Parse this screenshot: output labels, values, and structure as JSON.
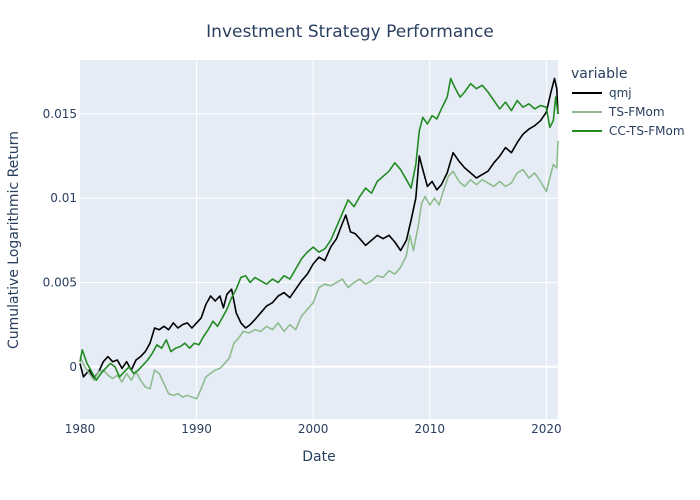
{
  "chart_data": {
    "type": "line",
    "title": "Investment Strategy Performance",
    "xlabel": "Date",
    "ylabel": "Cumulative Logarithmic Return",
    "xlim": [
      1980,
      2021
    ],
    "ylim": [
      -0.0031,
      0.0182
    ],
    "x_ticks": [
      1980,
      1990,
      2000,
      2010,
      2020
    ],
    "x_tick_labels": [
      "1980",
      "1990",
      "2000",
      "2010",
      "2020"
    ],
    "y_ticks": [
      0,
      0.005,
      0.01,
      0.015
    ],
    "y_tick_labels": [
      "0",
      "0.005",
      "0.01",
      "0.015"
    ],
    "legend_title": "variable",
    "legend_position": "right",
    "grid": true,
    "series": [
      {
        "name": "qmj",
        "color": "#000000",
        "points": [
          [
            1980.0,
            0.0002
          ],
          [
            1980.3,
            -0.0006
          ],
          [
            1980.8,
            -0.0002
          ],
          [
            1981.2,
            -0.0007
          ],
          [
            1981.6,
            -0.0003
          ],
          [
            1982.0,
            0.0003
          ],
          [
            1982.4,
            0.0006
          ],
          [
            1982.8,
            0.0003
          ],
          [
            1983.2,
            0.0004
          ],
          [
            1983.6,
            -0.0001
          ],
          [
            1984.0,
            0.0003
          ],
          [
            1984.4,
            -0.0002
          ],
          [
            1984.8,
            0.0004
          ],
          [
            1985.2,
            0.0006
          ],
          [
            1985.6,
            0.0009
          ],
          [
            1986.0,
            0.0014
          ],
          [
            1986.4,
            0.0023
          ],
          [
            1986.8,
            0.0022
          ],
          [
            1987.2,
            0.0024
          ],
          [
            1987.6,
            0.0022
          ],
          [
            1988.0,
            0.0026
          ],
          [
            1988.4,
            0.0023
          ],
          [
            1988.8,
            0.0025
          ],
          [
            1989.2,
            0.0026
          ],
          [
            1989.6,
            0.0023
          ],
          [
            1990.0,
            0.0026
          ],
          [
            1990.4,
            0.0029
          ],
          [
            1990.8,
            0.0037
          ],
          [
            1991.2,
            0.0042
          ],
          [
            1991.6,
            0.0039
          ],
          [
            1992.0,
            0.0042
          ],
          [
            1992.3,
            0.0035
          ],
          [
            1992.6,
            0.0043
          ],
          [
            1993.0,
            0.0046
          ],
          [
            1993.4,
            0.0032
          ],
          [
            1993.8,
            0.0026
          ],
          [
            1994.2,
            0.0023
          ],
          [
            1994.6,
            0.0025
          ],
          [
            1995.0,
            0.0028
          ],
          [
            1995.5,
            0.0032
          ],
          [
            1996.0,
            0.0036
          ],
          [
            1996.5,
            0.0038
          ],
          [
            1997.0,
            0.0042
          ],
          [
            1997.5,
            0.0044
          ],
          [
            1998.0,
            0.0041
          ],
          [
            1998.5,
            0.0046
          ],
          [
            1999.0,
            0.0051
          ],
          [
            1999.5,
            0.0055
          ],
          [
            2000.0,
            0.0061
          ],
          [
            2000.5,
            0.0065
          ],
          [
            2001.0,
            0.0063
          ],
          [
            2001.5,
            0.0071
          ],
          [
            2002.0,
            0.0076
          ],
          [
            2002.5,
            0.0085
          ],
          [
            2002.8,
            0.009
          ],
          [
            2003.2,
            0.008
          ],
          [
            2003.6,
            0.0079
          ],
          [
            2004.0,
            0.0076
          ],
          [
            2004.5,
            0.0072
          ],
          [
            2005.0,
            0.0075
          ],
          [
            2005.5,
            0.0078
          ],
          [
            2006.0,
            0.0076
          ],
          [
            2006.5,
            0.0078
          ],
          [
            2007.0,
            0.0074
          ],
          [
            2007.5,
            0.0069
          ],
          [
            2008.0,
            0.0075
          ],
          [
            2008.4,
            0.0087
          ],
          [
            2008.8,
            0.01
          ],
          [
            2009.1,
            0.0125
          ],
          [
            2009.4,
            0.0117
          ],
          [
            2009.8,
            0.0107
          ],
          [
            2010.2,
            0.011
          ],
          [
            2010.6,
            0.0105
          ],
          [
            2011.0,
            0.0108
          ],
          [
            2011.5,
            0.0115
          ],
          [
            2012.0,
            0.0127
          ],
          [
            2012.5,
            0.0122
          ],
          [
            2013.0,
            0.0118
          ],
          [
            2013.5,
            0.0115
          ],
          [
            2014.0,
            0.0112
          ],
          [
            2014.5,
            0.0114
          ],
          [
            2015.0,
            0.0116
          ],
          [
            2015.5,
            0.0121
          ],
          [
            2016.0,
            0.0125
          ],
          [
            2016.5,
            0.013
          ],
          [
            2017.0,
            0.0127
          ],
          [
            2017.5,
            0.0133
          ],
          [
            2018.0,
            0.0138
          ],
          [
            2018.5,
            0.0141
          ],
          [
            2019.0,
            0.0143
          ],
          [
            2019.5,
            0.0146
          ],
          [
            2020.0,
            0.0151
          ],
          [
            2020.4,
            0.0163
          ],
          [
            2020.7,
            0.0171
          ],
          [
            2020.9,
            0.0165
          ],
          [
            2021.0,
            0.015
          ]
        ]
      },
      {
        "name": "TS-FMom",
        "color": "#8fbc8f",
        "points": [
          [
            1980.0,
            0.0006
          ],
          [
            1980.4,
            0.0
          ],
          [
            1980.8,
            -0.0004
          ],
          [
            1981.2,
            -0.0008
          ],
          [
            1981.6,
            -0.0003
          ],
          [
            1982.0,
            -0.0002
          ],
          [
            1982.4,
            -0.0005
          ],
          [
            1982.8,
            -0.0007
          ],
          [
            1983.2,
            -0.0005
          ],
          [
            1983.6,
            -0.0009
          ],
          [
            1984.0,
            -0.0004
          ],
          [
            1984.4,
            -0.0008
          ],
          [
            1984.8,
            -0.0003
          ],
          [
            1985.2,
            -0.0008
          ],
          [
            1985.6,
            -0.0012
          ],
          [
            1986.0,
            -0.0013
          ],
          [
            1986.4,
            -0.0002
          ],
          [
            1986.8,
            -0.0004
          ],
          [
            1987.2,
            -0.001
          ],
          [
            1987.6,
            -0.0016
          ],
          [
            1988.0,
            -0.0017
          ],
          [
            1988.4,
            -0.0016
          ],
          [
            1988.8,
            -0.0018
          ],
          [
            1989.2,
            -0.0017
          ],
          [
            1989.6,
            -0.0018
          ],
          [
            1990.0,
            -0.0019
          ],
          [
            1990.4,
            -0.0013
          ],
          [
            1990.8,
            -0.0006
          ],
          [
            1991.2,
            -0.0004
          ],
          [
            1991.6,
            -0.0002
          ],
          [
            1992.0,
            -0.0001
          ],
          [
            1992.4,
            0.0002
          ],
          [
            1992.8,
            0.0005
          ],
          [
            1993.2,
            0.0014
          ],
          [
            1993.6,
            0.0017
          ],
          [
            1994.0,
            0.0021
          ],
          [
            1994.5,
            0.002
          ],
          [
            1995.0,
            0.0022
          ],
          [
            1995.5,
            0.0021
          ],
          [
            1996.0,
            0.0024
          ],
          [
            1996.5,
            0.0022
          ],
          [
            1997.0,
            0.0026
          ],
          [
            1997.5,
            0.0021
          ],
          [
            1998.0,
            0.0025
          ],
          [
            1998.5,
            0.0022
          ],
          [
            1999.0,
            0.003
          ],
          [
            1999.5,
            0.0034
          ],
          [
            2000.0,
            0.0038
          ],
          [
            2000.5,
            0.0047
          ],
          [
            2001.0,
            0.0049
          ],
          [
            2001.5,
            0.0048
          ],
          [
            2002.0,
            0.005
          ],
          [
            2002.5,
            0.0052
          ],
          [
            2003.0,
            0.0047
          ],
          [
            2003.5,
            0.005
          ],
          [
            2004.0,
            0.0052
          ],
          [
            2004.5,
            0.0049
          ],
          [
            2005.0,
            0.0051
          ],
          [
            2005.5,
            0.0054
          ],
          [
            2006.0,
            0.0053
          ],
          [
            2006.5,
            0.0057
          ],
          [
            2007.0,
            0.0055
          ],
          [
            2007.5,
            0.0059
          ],
          [
            2008.0,
            0.0066
          ],
          [
            2008.3,
            0.0078
          ],
          [
            2008.6,
            0.0069
          ],
          [
            2009.0,
            0.0083
          ],
          [
            2009.3,
            0.0097
          ],
          [
            2009.6,
            0.0101
          ],
          [
            2010.0,
            0.0096
          ],
          [
            2010.4,
            0.01
          ],
          [
            2010.8,
            0.0096
          ],
          [
            2011.2,
            0.0105
          ],
          [
            2011.6,
            0.0113
          ],
          [
            2012.0,
            0.0116
          ],
          [
            2012.5,
            0.011
          ],
          [
            2013.0,
            0.0107
          ],
          [
            2013.5,
            0.0111
          ],
          [
            2014.0,
            0.0108
          ],
          [
            2014.5,
            0.0111
          ],
          [
            2015.0,
            0.0109
          ],
          [
            2015.5,
            0.0107
          ],
          [
            2016.0,
            0.011
          ],
          [
            2016.5,
            0.0107
          ],
          [
            2017.0,
            0.0109
          ],
          [
            2017.5,
            0.0115
          ],
          [
            2018.0,
            0.0117
          ],
          [
            2018.5,
            0.0112
          ],
          [
            2019.0,
            0.0115
          ],
          [
            2019.5,
            0.011
          ],
          [
            2020.0,
            0.0104
          ],
          [
            2020.3,
            0.0112
          ],
          [
            2020.6,
            0.012
          ],
          [
            2020.9,
            0.0118
          ],
          [
            2021.0,
            0.0134
          ]
        ]
      },
      {
        "name": "CC-TS-FMom",
        "color": "#228b22",
        "points": [
          [
            1980.0,
            0.0003
          ],
          [
            1980.2,
            0.001
          ],
          [
            1980.6,
            0.0002
          ],
          [
            1981.0,
            -0.0003
          ],
          [
            1981.4,
            -0.0008
          ],
          [
            1981.8,
            -0.0004
          ],
          [
            1982.2,
            -0.0001
          ],
          [
            1982.6,
            0.0002
          ],
          [
            1983.0,
            0.0
          ],
          [
            1983.4,
            -0.0006
          ],
          [
            1983.8,
            -0.0003
          ],
          [
            1984.2,
            0.0
          ],
          [
            1984.6,
            -0.0004
          ],
          [
            1985.0,
            -0.0002
          ],
          [
            1985.4,
            0.0001
          ],
          [
            1985.8,
            0.0004
          ],
          [
            1986.2,
            0.0008
          ],
          [
            1986.6,
            0.0013
          ],
          [
            1987.0,
            0.0011
          ],
          [
            1987.4,
            0.0016
          ],
          [
            1987.8,
            0.0009
          ],
          [
            1988.2,
            0.0011
          ],
          [
            1988.6,
            0.0012
          ],
          [
            1989.0,
            0.0014
          ],
          [
            1989.4,
            0.0011
          ],
          [
            1989.8,
            0.0014
          ],
          [
            1990.2,
            0.0013
          ],
          [
            1990.6,
            0.0018
          ],
          [
            1991.0,
            0.0022
          ],
          [
            1991.4,
            0.0027
          ],
          [
            1991.8,
            0.0024
          ],
          [
            1992.2,
            0.0029
          ],
          [
            1992.6,
            0.0034
          ],
          [
            1993.0,
            0.0041
          ],
          [
            1993.4,
            0.0046
          ],
          [
            1993.8,
            0.0053
          ],
          [
            1994.2,
            0.0054
          ],
          [
            1994.6,
            0.005
          ],
          [
            1995.0,
            0.0053
          ],
          [
            1995.5,
            0.0051
          ],
          [
            1996.0,
            0.0049
          ],
          [
            1996.5,
            0.0052
          ],
          [
            1997.0,
            0.005
          ],
          [
            1997.5,
            0.0054
          ],
          [
            1998.0,
            0.0052
          ],
          [
            1998.5,
            0.0058
          ],
          [
            1999.0,
            0.0064
          ],
          [
            1999.5,
            0.0068
          ],
          [
            2000.0,
            0.0071
          ],
          [
            2000.5,
            0.0068
          ],
          [
            2001.0,
            0.007
          ],
          [
            2001.5,
            0.0075
          ],
          [
            2002.0,
            0.0083
          ],
          [
            2002.5,
            0.0091
          ],
          [
            2003.0,
            0.0099
          ],
          [
            2003.5,
            0.0095
          ],
          [
            2004.0,
            0.0101
          ],
          [
            2004.5,
            0.0106
          ],
          [
            2005.0,
            0.0103
          ],
          [
            2005.5,
            0.011
          ],
          [
            2006.0,
            0.0113
          ],
          [
            2006.5,
            0.0116
          ],
          [
            2007.0,
            0.0121
          ],
          [
            2007.5,
            0.0117
          ],
          [
            2008.0,
            0.0111
          ],
          [
            2008.4,
            0.0106
          ],
          [
            2008.8,
            0.012
          ],
          [
            2009.1,
            0.014
          ],
          [
            2009.4,
            0.0148
          ],
          [
            2009.8,
            0.0144
          ],
          [
            2010.2,
            0.0149
          ],
          [
            2010.6,
            0.0147
          ],
          [
            2011.0,
            0.0153
          ],
          [
            2011.5,
            0.016
          ],
          [
            2011.8,
            0.0171
          ],
          [
            2012.2,
            0.0165
          ],
          [
            2012.6,
            0.016
          ],
          [
            2013.0,
            0.0163
          ],
          [
            2013.5,
            0.0168
          ],
          [
            2014.0,
            0.0165
          ],
          [
            2014.5,
            0.0167
          ],
          [
            2015.0,
            0.0163
          ],
          [
            2015.5,
            0.0158
          ],
          [
            2016.0,
            0.0153
          ],
          [
            2016.5,
            0.0157
          ],
          [
            2017.0,
            0.0152
          ],
          [
            2017.5,
            0.0158
          ],
          [
            2018.0,
            0.0154
          ],
          [
            2018.5,
            0.0156
          ],
          [
            2019.0,
            0.0153
          ],
          [
            2019.5,
            0.0155
          ],
          [
            2020.0,
            0.0154
          ],
          [
            2020.3,
            0.0142
          ],
          [
            2020.6,
            0.0146
          ],
          [
            2020.8,
            0.016
          ],
          [
            2021.0,
            0.015
          ]
        ]
      }
    ]
  }
}
